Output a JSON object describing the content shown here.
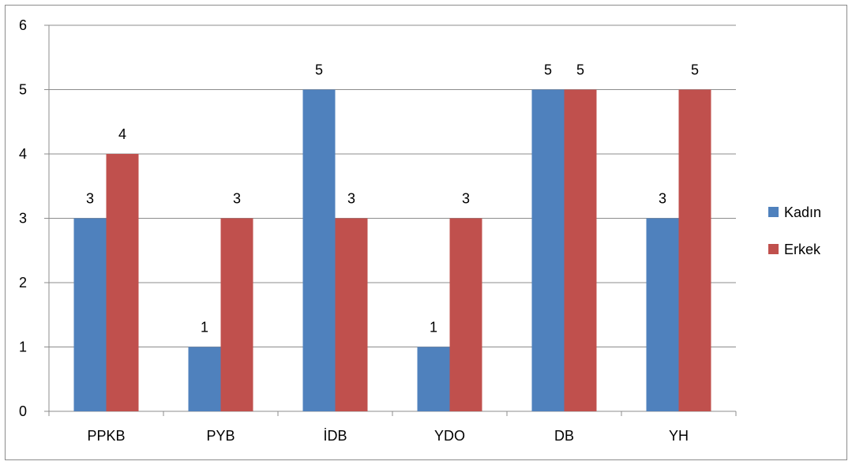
{
  "chart_data": {
    "type": "bar",
    "categories": [
      "PPKB",
      "PYB",
      "İDB",
      "YDO",
      "DB",
      "YH"
    ],
    "series": [
      {
        "name": "Kadın",
        "values": [
          3,
          1,
          5,
          1,
          5,
          3
        ],
        "color": "#4f81bd"
      },
      {
        "name": "Erkek",
        "values": [
          4,
          3,
          3,
          3,
          5,
          5
        ],
        "color": "#c0504d"
      }
    ],
    "y_ticks": [
      "0",
      "1",
      "2",
      "3",
      "4",
      "5",
      "6"
    ],
    "ylim": [
      0,
      6
    ],
    "grid": true,
    "legend_position": "right",
    "data_labels": true,
    "title": "",
    "xlabel": "",
    "ylabel": ""
  }
}
